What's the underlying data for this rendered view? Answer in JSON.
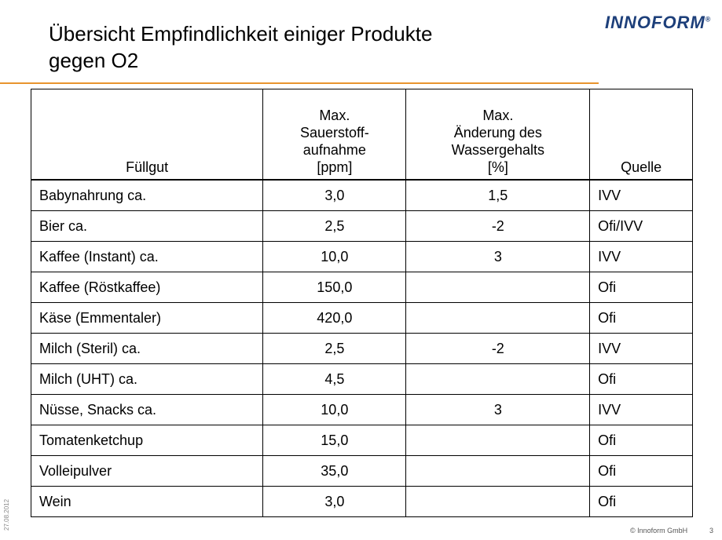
{
  "header": {
    "title": [
      "Übersicht Empfindlichkeit einiger Produkte",
      "gegen O2"
    ],
    "logo": "INNOFORM",
    "logo_mark": "®"
  },
  "table": {
    "columns": [
      [
        "Füllgut"
      ],
      [
        "Max.",
        "Sauerstoff-",
        "aufnahme",
        "[ppm]"
      ],
      [
        "Max.",
        "Änderung des",
        "Wassergehalts",
        "[%]"
      ],
      [
        "Quelle"
      ]
    ],
    "rows": [
      [
        "Babynahrung ca.",
        "3,0",
        "1,5",
        "IVV"
      ],
      [
        "Bier ca.",
        "2,5",
        "-2",
        "Ofi/IVV"
      ],
      [
        "Kaffee (Instant) ca.",
        "10,0",
        "3",
        "IVV"
      ],
      [
        "Kaffee (Röstkaffee)",
        "150,0",
        null,
        "Ofi"
      ],
      [
        "Käse (Emmentaler)",
        "420,0",
        null,
        "Ofi"
      ],
      [
        "Milch (Steril) ca.",
        "2,5",
        "-2",
        "IVV"
      ],
      [
        "Milch (UHT) ca.",
        "4,5",
        null,
        "Ofi"
      ],
      [
        "Nüsse, Snacks ca.",
        "10,0",
        "3",
        "IVV"
      ],
      [
        "Tomatenketchup",
        "15,0",
        null,
        "Ofi"
      ],
      [
        "Volleipulver",
        "35,0",
        null,
        "Ofi"
      ],
      [
        "Wein",
        "3,0",
        null,
        "Ofi"
      ]
    ]
  },
  "footer": {
    "date": "27.08.2012",
    "copyright": "© Innoform GmbH",
    "page": "3"
  }
}
